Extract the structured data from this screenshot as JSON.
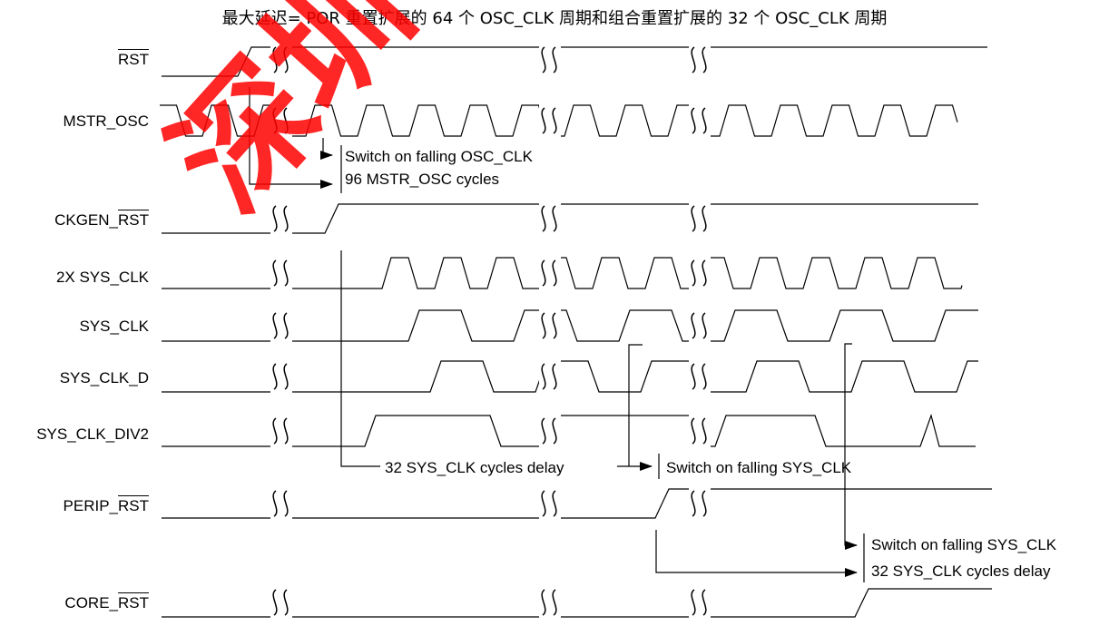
{
  "title": "最大延迟= POR 重置扩展的 64 个 OSC_CLK 周期和组合重置扩展的 32 个 OSC_CLK 周期",
  "watermark": "深圳",
  "colors": {
    "line": "#000000",
    "watermark": "#ff0000"
  },
  "signals": {
    "rst": {
      "label": "RST",
      "overline": true
    },
    "mstr": {
      "label": "MSTR_OSC"
    },
    "ckgen": {
      "prefix": "CKGEN_",
      "label": "RST",
      "overline": true
    },
    "sys2x": {
      "label": "2X SYS_CLK"
    },
    "sysclk": {
      "label": "SYS_CLK"
    },
    "sysclkd": {
      "label": "SYS_CLK_D"
    },
    "div2": {
      "label": "SYS_CLK_DIV2"
    },
    "perip": {
      "prefix": "PERIP_",
      "label": "RST",
      "overline": true
    },
    "core": {
      "prefix": "CORE_",
      "label": "RST",
      "overline": true
    }
  },
  "annotations": {
    "switch_osc": "Switch on falling OSC_CLK",
    "mstr_cycles": "96 MSTR_OSC cycles",
    "delay1": "32 SYS_CLK cycles delay",
    "switch_sys1": "Switch on falling SYS_CLK",
    "switch_sys2": "Switch on falling SYS_CLK",
    "delay2": "32 SYS_CLK cycles delay"
  }
}
